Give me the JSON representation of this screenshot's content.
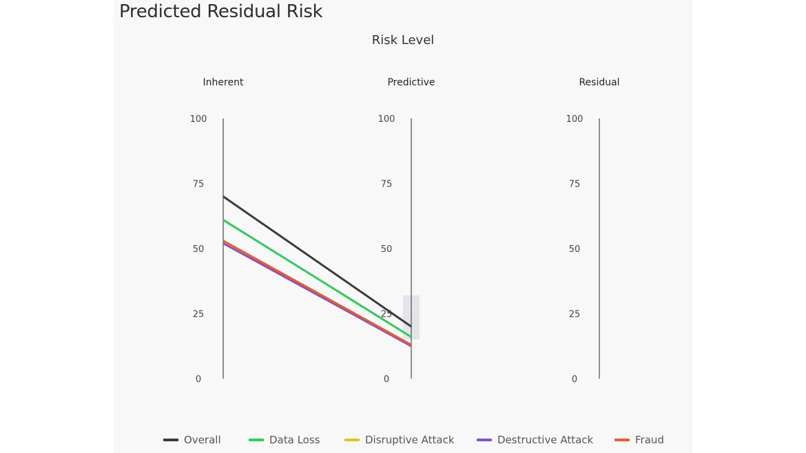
{
  "page": {
    "title": "Predicted Residual Risk"
  },
  "chart_data": {
    "type": "line",
    "subtype": "parallel-coordinates",
    "title": "Risk Level",
    "axes": [
      {
        "name": "Inherent",
        "ticks": [
          "100",
          "75",
          "50",
          "25",
          "0"
        ],
        "range": [
          0,
          100
        ]
      },
      {
        "name": "Predictive",
        "ticks": [
          "100",
          "75",
          "50",
          "25",
          "0"
        ],
        "range": [
          0,
          100
        ]
      },
      {
        "name": "Residual",
        "ticks": [
          "100",
          "75",
          "50",
          "25",
          "0"
        ],
        "range": [
          0,
          100
        ]
      }
    ],
    "categories": [
      "Inherent",
      "Predictive",
      "Residual"
    ],
    "series": [
      {
        "name": "Overall",
        "color": "#3a3a3a",
        "values": [
          70,
          20,
          null
        ]
      },
      {
        "name": "Data Loss",
        "color": "#2ecc5a",
        "values": [
          61,
          16,
          null
        ]
      },
      {
        "name": "Disruptive Attack",
        "color": "#e6c229",
        "values": [
          53,
          12.5,
          null
        ]
      },
      {
        "name": "Destructive Attack",
        "color": "#7e57c2",
        "values": [
          52,
          12.5,
          null
        ]
      },
      {
        "name": "Fraud",
        "color": "#ee5a2c",
        "values": [
          53,
          13,
          null
        ]
      }
    ],
    "legend_position": "bottom",
    "hover_axis": "Predictive"
  }
}
